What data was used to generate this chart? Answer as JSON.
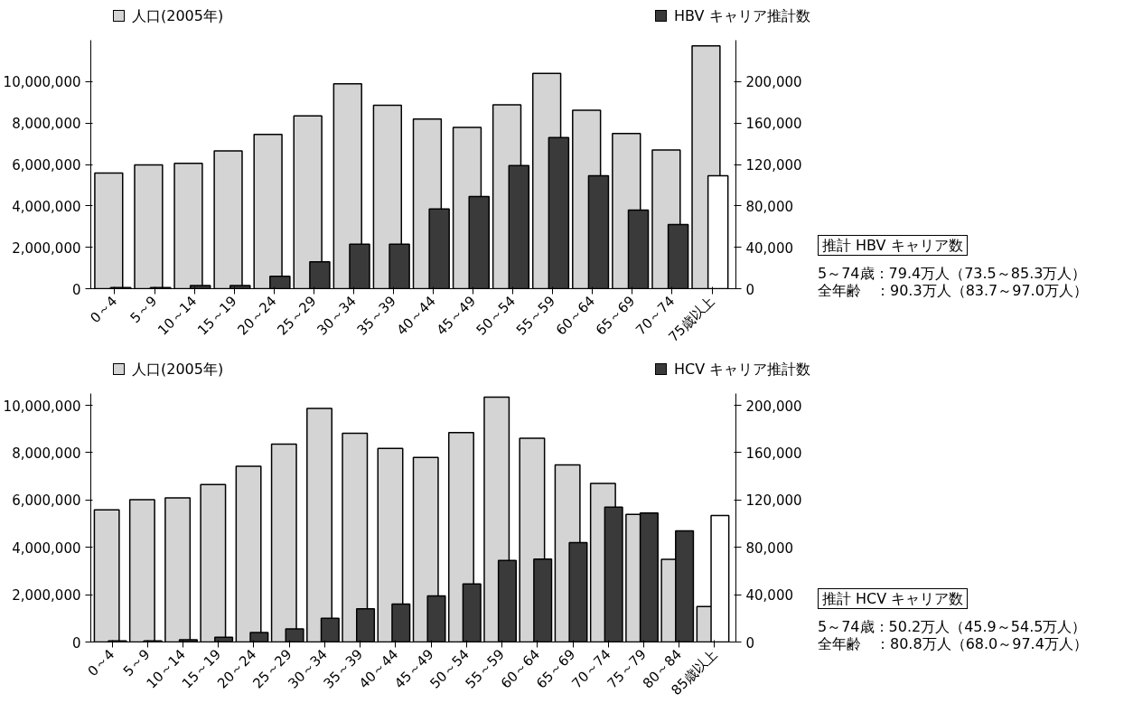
{
  "chart_data": [
    {
      "type": "bar",
      "categories": [
        "0～4",
        "5～9",
        "10～14",
        "15～19",
        "20～24",
        "25～29",
        "30～34",
        "35～39",
        "40～44",
        "45～49",
        "50～54",
        "55～59",
        "60～64",
        "65～69",
        "70～74",
        "75歳以上"
      ],
      "series": [
        {
          "name": "人口(2005年)",
          "color": "#d4d4d4",
          "values": [
            5590000,
            5980000,
            6060000,
            6650000,
            7450000,
            8350000,
            9890000,
            8860000,
            8190000,
            7790000,
            8880000,
            10400000,
            8620000,
            7500000,
            6700000,
            11730000
          ]
        },
        {
          "name": "HBV キャリア推計数",
          "color": "#3a3a3a",
          "axis": "y2",
          "colors": [
            "#3a3a3a",
            "#3a3a3a",
            "#3a3a3a",
            "#3a3a3a",
            "#3a3a3a",
            "#3a3a3a",
            "#3a3a3a",
            "#3a3a3a",
            "#3a3a3a",
            "#3a3a3a",
            "#3a3a3a",
            "#3a3a3a",
            "#3a3a3a",
            "#3a3a3a",
            "#3a3a3a",
            "#ffffff"
          ],
          "values": [
            1000,
            1000,
            3000,
            3000,
            12000,
            26000,
            43000,
            43000,
            77000,
            89000,
            119000,
            146000,
            109000,
            76000,
            62000,
            109000
          ]
        }
      ],
      "ylim": [
        0,
        12000000
      ],
      "yticks": [
        {
          "value": 0,
          "label": "0"
        },
        {
          "value": 2000000,
          "label": "2,000,000"
        },
        {
          "value": 4000000,
          "label": "4,000,000"
        },
        {
          "value": 6000000,
          "label": "6,000,000"
        },
        {
          "value": 8000000,
          "label": "8,000,000"
        },
        {
          "value": 10000000,
          "label": "10,000,000"
        }
      ],
      "y2lim": [
        0,
        240000
      ],
      "y2ticks": [
        {
          "value": 0,
          "label": "0"
        },
        {
          "value": 40000,
          "label": "40,000"
        },
        {
          "value": 80000,
          "label": "80,000"
        },
        {
          "value": 120000,
          "label": "120,000"
        },
        {
          "value": 160000,
          "label": "160,000"
        },
        {
          "value": 200000,
          "label": "200,000"
        }
      ],
      "legend": "top",
      "grid": false,
      "annotations": [
        "推計 HBV キャリア数",
        "5～74歳：79.4万人（73.5～85.3万人）",
        "全年齢　：90.3万人（83.7～97.0万人）"
      ]
    },
    {
      "type": "bar",
      "categories": [
        "0～4",
        "5～9",
        "10～14",
        "15～19",
        "20～24",
        "25～29",
        "30～34",
        "35～39",
        "40～44",
        "45～49",
        "50～54",
        "55～59",
        "60～64",
        "65～69",
        "70～74",
        "75～79",
        "80～84",
        "85歳以上"
      ],
      "series": [
        {
          "name": "人口(2005年)",
          "color": "#d4d4d4",
          "values": [
            5580000,
            6010000,
            6090000,
            6650000,
            7430000,
            8360000,
            9870000,
            8820000,
            8180000,
            7800000,
            8850000,
            10350000,
            8610000,
            7480000,
            6700000,
            5390000,
            3490000,
            1500000
          ]
        },
        {
          "name": "HCV キャリア推計数",
          "color": "#3a3a3a",
          "axis": "y2",
          "colors": [
            "#3a3a3a",
            "#3a3a3a",
            "#3a3a3a",
            "#3a3a3a",
            "#3a3a3a",
            "#3a3a3a",
            "#3a3a3a",
            "#3a3a3a",
            "#3a3a3a",
            "#3a3a3a",
            "#3a3a3a",
            "#3a3a3a",
            "#3a3a3a",
            "#3a3a3a",
            "#3a3a3a",
            "#3a3a3a",
            "#3a3a3a",
            "#ffffff"
          ],
          "values": [
            1000,
            1000,
            2000,
            4000,
            8000,
            11000,
            20000,
            28000,
            32000,
            39000,
            49000,
            69000,
            70000,
            84000,
            114000,
            109000,
            94000,
            107000
          ]
        }
      ],
      "ylim": [
        0,
        10500000
      ],
      "yticks": [
        {
          "value": 0,
          "label": "0"
        },
        {
          "value": 2000000,
          "label": "2,000,000"
        },
        {
          "value": 4000000,
          "label": "4,000,000"
        },
        {
          "value": 6000000,
          "label": "6,000,000"
        },
        {
          "value": 8000000,
          "label": "8,000,000"
        },
        {
          "value": 10000000,
          "label": "10,000,000"
        }
      ],
      "y2lim": [
        0,
        210000
      ],
      "y2ticks": [
        {
          "value": 0,
          "label": "0"
        },
        {
          "value": 40000,
          "label": "40,000"
        },
        {
          "value": 80000,
          "label": "80,000"
        },
        {
          "value": 120000,
          "label": "120,000"
        },
        {
          "value": 160000,
          "label": "160,000"
        },
        {
          "value": 200000,
          "label": "200,000"
        }
      ],
      "legend": "top",
      "grid": false,
      "annotations": [
        "推計 HCV キャリア数",
        "5～74歳：50.2万人（45.9～54.5万人）",
        "全年齢　：80.8万人（68.0～97.4万人）"
      ]
    }
  ]
}
